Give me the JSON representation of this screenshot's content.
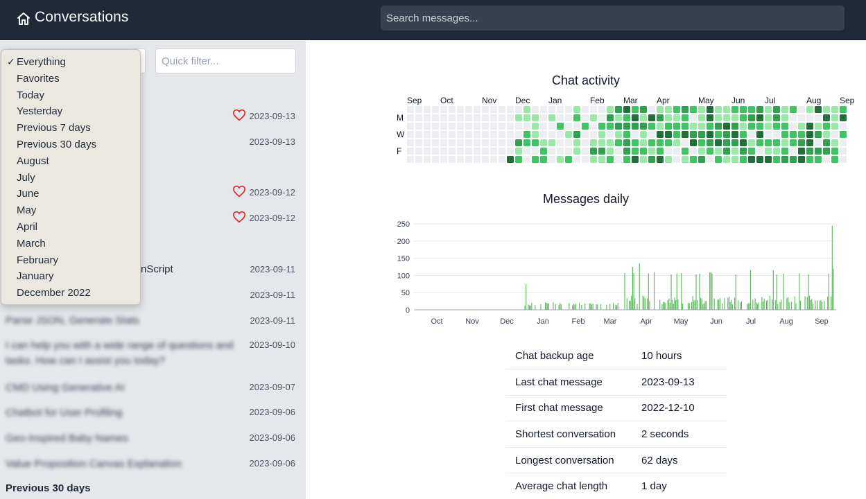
{
  "header": {
    "title": "Conversations",
    "search_placeholder": "Search messages..."
  },
  "sidebar": {
    "quick_filter_placeholder": "Quick filter...",
    "conversations": [
      {
        "title": "",
        "date": "2023-09-13",
        "favorite": true
      },
      {
        "title": "",
        "date": "2023-09-13",
        "favorite": false
      },
      {
        "title": "",
        "date": "2023-09-12",
        "favorite": true
      },
      {
        "title": "",
        "date": "2023-09-12",
        "favorite": true
      },
      {
        "title": "nScript",
        "date": "2023-09-11",
        "favorite": false
      },
      {
        "title": "",
        "date": "2023-09-11",
        "favorite": false
      },
      {
        "title": "Parse JSON, Generate Stats",
        "date": "2023-09-11",
        "favorite": false
      },
      {
        "title": "I can help you with a wide range of questions and",
        "title2": "tasks. How can I assist you today?",
        "date": "2023-09-10",
        "favorite": false
      },
      {
        "title": "CMD Using Generative AI",
        "date": "2023-09-07",
        "favorite": false
      },
      {
        "title": "Chatbot for User Profiling",
        "date": "2023-09-06",
        "favorite": false
      },
      {
        "title": "Geo-Inspired Baby Names",
        "date": "2023-09-06",
        "favorite": false
      },
      {
        "title": "Value Proposition Canvas Explanation",
        "date": "2023-09-06",
        "favorite": false
      }
    ],
    "group_heading": "Previous 30 days"
  },
  "dropdown": {
    "selected": "Everything",
    "options": [
      "Everything",
      "Favorites",
      "Today",
      "Yesterday",
      "Previous 7 days",
      "Previous 30 days",
      "August",
      "July",
      "June",
      "May",
      "April",
      "March",
      "February",
      "January",
      "December 2022"
    ]
  },
  "activity": {
    "title": "Chat activity",
    "month_labels": [
      "Sep",
      "Oct",
      "Nov",
      "Dec",
      "Jan",
      "Feb",
      "Mar",
      "Apr",
      "May",
      "Jun",
      "Jul",
      "Aug",
      "Sep"
    ],
    "day_labels": [
      "M",
      "W",
      "F"
    ],
    "colors": [
      "#ebedf0",
      "#9be9a8",
      "#40c463",
      "#30a14e",
      "#216e39"
    ]
  },
  "daily": {
    "title": "Messages daily",
    "y_ticks": [
      "250",
      "200",
      "150",
      "100",
      "50",
      "0"
    ],
    "x_ticks": [
      "Oct",
      "Nov",
      "Dec",
      "Jan",
      "Feb",
      "Mar",
      "Apr",
      "May",
      "Jun",
      "Jul",
      "Aug",
      "Sep"
    ],
    "bar_color": "#5cb85c"
  },
  "chart_data": [
    {
      "type": "heatmap",
      "title": "Chat activity",
      "x_labels": [
        "Sep",
        "Oct",
        "Nov",
        "Dec",
        "Jan",
        "Feb",
        "Mar",
        "Apr",
        "May",
        "Jun",
        "Jul",
        "Aug",
        "Sep"
      ],
      "y_labels": [
        "M",
        "W",
        "F"
      ]
    },
    {
      "type": "bar",
      "title": "Messages daily",
      "categories": [
        "Oct",
        "Nov",
        "Dec",
        "Jan",
        "Feb",
        "Mar",
        "Apr",
        "May",
        "Jun",
        "Jul",
        "Aug",
        "Sep"
      ],
      "ylim": [
        0,
        250
      ],
      "notable_values": [
        {
          "x": "Dec",
          "y": 75
        },
        {
          "x": "Mar",
          "y": 125
        },
        {
          "x": "Mar",
          "y": 135
        },
        {
          "x": "Apr",
          "y": 110
        },
        {
          "x": "May",
          "y": 105
        },
        {
          "x": "Jul",
          "y": 115
        },
        {
          "x": "Aug",
          "y": 115
        },
        {
          "x": "Sep",
          "y": 245
        },
        {
          "x": "Sep",
          "y": 120
        }
      ]
    }
  ],
  "stats": [
    {
      "label": "Chat backup age",
      "value": "10 hours"
    },
    {
      "label": "Last chat message",
      "value": "2023-09-13"
    },
    {
      "label": "First chat message",
      "value": "2022-12-10"
    },
    {
      "label": "Shortest conversation",
      "value": "2 seconds"
    },
    {
      "label": "Longest conversation",
      "value": "62 days"
    },
    {
      "label": "Average chat length",
      "value": "1 day"
    }
  ]
}
